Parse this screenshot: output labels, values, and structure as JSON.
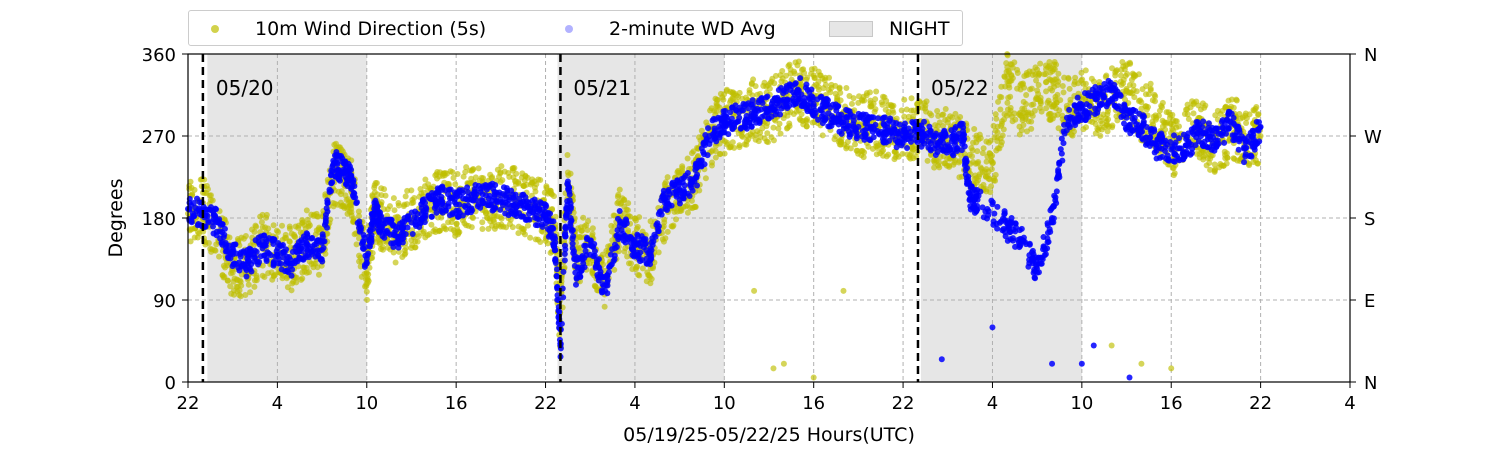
{
  "chart_data": {
    "type": "scatter",
    "title": "",
    "xlabel": "05/19/25-05/22/25  Hours(UTC)",
    "ylabel": "Degrees",
    "x_unit": "hours since 05/19/25 00:00 UTC",
    "xlim": [
      22,
      100
    ],
    "ylim": [
      0,
      360
    ],
    "x_ticks": [
      22,
      28,
      34,
      40,
      46,
      52,
      58,
      64,
      70,
      76,
      82,
      88,
      94,
      100
    ],
    "x_tick_labels": [
      "22",
      "4",
      "10",
      "16",
      "22",
      "4",
      "10",
      "16",
      "22",
      "4",
      "10",
      "16",
      "22",
      "4"
    ],
    "y_ticks": [
      0,
      90,
      180,
      270,
      360
    ],
    "y_tick_labels": [
      "0",
      "90",
      "180",
      "270",
      "360"
    ],
    "right_ticks": [
      0,
      90,
      180,
      270,
      360
    ],
    "right_tick_labels": [
      "N",
      "E",
      "S",
      "W",
      "N"
    ],
    "grid": true,
    "legend_position": "top-left, above plot",
    "night_periods": [
      [
        23.3,
        34
      ],
      [
        46.8,
        58
      ],
      [
        71.2,
        82
      ]
    ],
    "day_markers": [
      {
        "x": 23,
        "label": "05/20"
      },
      {
        "x": 47,
        "label": "05/21"
      },
      {
        "x": 71,
        "label": "05/22"
      }
    ],
    "series": [
      {
        "name": "10m Wind Direction (5s)",
        "color": "#bfbf00",
        "points": [
          [
            22,
            185
          ],
          [
            23,
            190
          ],
          [
            24,
            165
          ],
          [
            25,
            120
          ],
          [
            26,
            130
          ],
          [
            27,
            150
          ],
          [
            28,
            145
          ],
          [
            29,
            135
          ],
          [
            30,
            155
          ],
          [
            31,
            150
          ],
          [
            31.8,
            230
          ],
          [
            32.5,
            225
          ],
          [
            33,
            210
          ],
          [
            34,
            120
          ],
          [
            34.5,
            190
          ],
          [
            35,
            180
          ],
          [
            36,
            165
          ],
          [
            37,
            180
          ],
          [
            38,
            190
          ],
          [
            39,
            200
          ],
          [
            40,
            195
          ],
          [
            41,
            205
          ],
          [
            42,
            200
          ],
          [
            43,
            205
          ],
          [
            44,
            200
          ],
          [
            45,
            190
          ],
          [
            46,
            185
          ],
          [
            46.6,
            170
          ],
          [
            47,
            60
          ],
          [
            47.5,
            230
          ],
          [
            48,
            140
          ],
          [
            49,
            150
          ],
          [
            50,
            110
          ],
          [
            51,
            180
          ],
          [
            52,
            150
          ],
          [
            53,
            140
          ],
          [
            54,
            190
          ],
          [
            55,
            210
          ],
          [
            56,
            220
          ],
          [
            57,
            270
          ],
          [
            58,
            285
          ],
          [
            59,
            290
          ],
          [
            60,
            300
          ],
          [
            61,
            295
          ],
          [
            62,
            310
          ],
          [
            63,
            320
          ],
          [
            64,
            310
          ],
          [
            65,
            300
          ],
          [
            66,
            290
          ],
          [
            67,
            280
          ],
          [
            68,
            285
          ],
          [
            69,
            280
          ],
          [
            70,
            275
          ],
          [
            71,
            280
          ],
          [
            72,
            270
          ],
          [
            73,
            265
          ],
          [
            74,
            255
          ],
          [
            75,
            240
          ],
          [
            76,
            240
          ],
          [
            77,
            330
          ],
          [
            78,
            300
          ],
          [
            79,
            320
          ],
          [
            80,
            320
          ],
          [
            81,
            300
          ],
          [
            82,
            310
          ],
          [
            83,
            300
          ],
          [
            84,
            310
          ],
          [
            85,
            320
          ],
          [
            86,
            300
          ],
          [
            87,
            290
          ],
          [
            88,
            260
          ],
          [
            89,
            270
          ],
          [
            90,
            280
          ],
          [
            91,
            260
          ],
          [
            92,
            280
          ],
          [
            93,
            270
          ],
          [
            94,
            270
          ],
          [
            60,
            100
          ],
          [
            66,
            100
          ],
          [
            61.3,
            15
          ],
          [
            62,
            20
          ],
          [
            64,
            5
          ],
          [
            84,
            40
          ],
          [
            86,
            20
          ],
          [
            88,
            15
          ]
        ]
      },
      {
        "name": "2-minute WD Avg",
        "color": "#0000ff",
        "points": [
          [
            22,
            190
          ],
          [
            23,
            185
          ],
          [
            24,
            175
          ],
          [
            25,
            140
          ],
          [
            26,
            130
          ],
          [
            27,
            150
          ],
          [
            28,
            140
          ],
          [
            29,
            130
          ],
          [
            30,
            150
          ],
          [
            31,
            145
          ],
          [
            31.8,
            240
          ],
          [
            32.5,
            230
          ],
          [
            33,
            220
          ],
          [
            34,
            130
          ],
          [
            34.5,
            190
          ],
          [
            35,
            170
          ],
          [
            36,
            160
          ],
          [
            37,
            175
          ],
          [
            38,
            190
          ],
          [
            39,
            200
          ],
          [
            40,
            195
          ],
          [
            41,
            200
          ],
          [
            42,
            205
          ],
          [
            43,
            200
          ],
          [
            44,
            195
          ],
          [
            45,
            190
          ],
          [
            46,
            180
          ],
          [
            46.6,
            160
          ],
          [
            47,
            40
          ],
          [
            47.5,
            220
          ],
          [
            48,
            120
          ],
          [
            49,
            150
          ],
          [
            50,
            100
          ],
          [
            51,
            175
          ],
          [
            52,
            150
          ],
          [
            53,
            140
          ],
          [
            54,
            200
          ],
          [
            55,
            210
          ],
          [
            56,
            220
          ],
          [
            57,
            270
          ],
          [
            58,
            285
          ],
          [
            59,
            290
          ],
          [
            60,
            295
          ],
          [
            61,
            300
          ],
          [
            62,
            310
          ],
          [
            63,
            320
          ],
          [
            64,
            305
          ],
          [
            65,
            295
          ],
          [
            66,
            285
          ],
          [
            67,
            280
          ],
          [
            68,
            280
          ],
          [
            69,
            275
          ],
          [
            70,
            270
          ],
          [
            71,
            275
          ],
          [
            72,
            265
          ],
          [
            73,
            260
          ],
          [
            74,
            270
          ],
          [
            74.5,
            200
          ],
          [
            75,
            200
          ],
          [
            76,
            60
          ],
          [
            77,
            170
          ],
          [
            78,
            155
          ],
          [
            79,
            120
          ],
          [
            80,
            180
          ],
          [
            81,
            290
          ],
          [
            82,
            300
          ],
          [
            83,
            310
          ],
          [
            84,
            320
          ],
          [
            85,
            290
          ],
          [
            86,
            280
          ],
          [
            87,
            260
          ],
          [
            88,
            255
          ],
          [
            89,
            260
          ],
          [
            90,
            275
          ],
          [
            91,
            265
          ],
          [
            92,
            285
          ],
          [
            93,
            250
          ],
          [
            94,
            280
          ],
          [
            72.6,
            25
          ],
          [
            80,
            20
          ],
          [
            82,
            20
          ],
          [
            82.8,
            40
          ],
          [
            85.2,
            5
          ]
        ]
      }
    ]
  },
  "legend": {
    "items": [
      {
        "label": "10m Wind Direction (5s)"
      },
      {
        "label": "2-minute WD Avg"
      },
      {
        "label": "NIGHT"
      }
    ]
  },
  "colors": {
    "yellow": "#bfbf00",
    "blue": "#0000ff",
    "night": "#e6e6e6",
    "grid": "#b0b0b0"
  }
}
